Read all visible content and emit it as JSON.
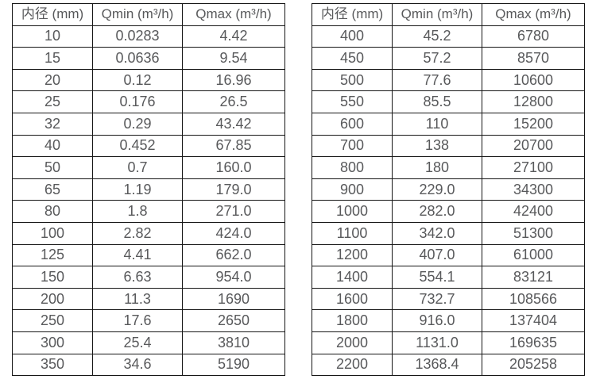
{
  "page": {
    "background_color": "#ffffff",
    "text_color": "#58595b",
    "border_color": "#161616"
  },
  "chart_data": [
    {
      "type": "table",
      "title": "",
      "columns": [
        "内径 (mm)",
        "Qmin (m³/h)",
        "Qmax (m³/h)"
      ],
      "rows": [
        [
          "10",
          "0.0283",
          "4.42"
        ],
        [
          "15",
          "0.0636",
          "9.54"
        ],
        [
          "20",
          "0.12",
          "16.96"
        ],
        [
          "25",
          "0.176",
          "26.5"
        ],
        [
          "32",
          "0.29",
          "43.42"
        ],
        [
          "40",
          "0.452",
          "67.85"
        ],
        [
          "50",
          "0.7",
          "160.0"
        ],
        [
          "65",
          "1.19",
          "179.0"
        ],
        [
          "80",
          "1.8",
          "271.0"
        ],
        [
          "100",
          "2.82",
          "424.0"
        ],
        [
          "125",
          "4.41",
          "662.0"
        ],
        [
          "150",
          "6.63",
          "954.0"
        ],
        [
          "200",
          "11.3",
          "1690"
        ],
        [
          "250",
          "17.6",
          "2650"
        ],
        [
          "300",
          "25.4",
          "3810"
        ],
        [
          "350",
          "34.6",
          "5190"
        ]
      ]
    },
    {
      "type": "table",
      "title": "",
      "columns": [
        "内径 (mm)",
        "Qmin (m³/h)",
        "Qmax (m³/h)"
      ],
      "rows": [
        [
          "400",
          "45.2",
          "6780"
        ],
        [
          "450",
          "57.2",
          "8570"
        ],
        [
          "500",
          "77.6",
          "10600"
        ],
        [
          "550",
          "85.5",
          "12800"
        ],
        [
          "600",
          "110",
          "15200"
        ],
        [
          "700",
          "138",
          "20700"
        ],
        [
          "800",
          "180",
          "27100"
        ],
        [
          "900",
          "229.0",
          "34300"
        ],
        [
          "1000",
          "282.0",
          "42400"
        ],
        [
          "1100",
          "342.0",
          "51300"
        ],
        [
          "1200",
          "407.0",
          "61000"
        ],
        [
          "1400",
          "554.1",
          "83121"
        ],
        [
          "1600",
          "732.7",
          "108566"
        ],
        [
          "1800",
          "916.0",
          "137404"
        ],
        [
          "2000",
          "1131.0",
          "169635"
        ],
        [
          "2200",
          "1368.4",
          "205258"
        ]
      ]
    }
  ]
}
